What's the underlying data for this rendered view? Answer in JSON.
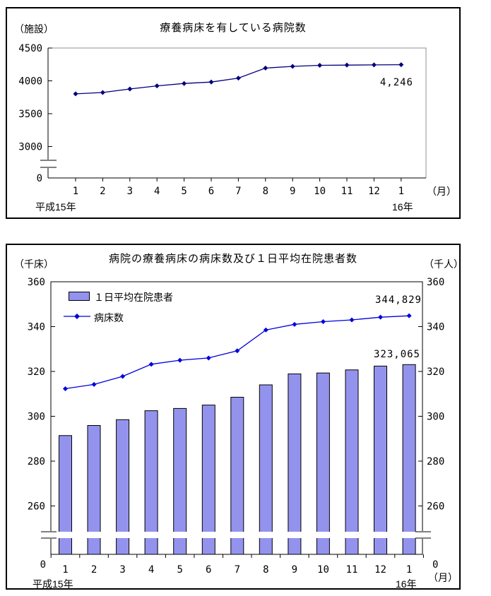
{
  "colors": {
    "bar_fill": "#9393ee",
    "bar_border": "#000000",
    "line_beds": "#0000dd",
    "line_hospitals": "#00007d",
    "plot_border_gray": "#909090",
    "axis": "#000000"
  },
  "chart_data": [
    {
      "type": "line",
      "title": "療養病床を有している病院数",
      "unit_left": "（施設）",
      "categories": [
        "1",
        "2",
        "3",
        "4",
        "5",
        "6",
        "7",
        "8",
        "9",
        "10",
        "11",
        "12",
        "1"
      ],
      "series": [
        {
          "name": "病院数",
          "values": [
            3802,
            3823,
            3876,
            3924,
            3960,
            3982,
            4042,
            4195,
            4220,
            4237,
            4240,
            4243,
            4246
          ]
        }
      ],
      "yticks": [
        4500,
        4000,
        3500,
        3000,
        0
      ],
      "ylim": [
        0,
        4500
      ],
      "axis_break_between": [
        0,
        3000
      ],
      "grid": false,
      "legend_position": "none",
      "annotation": "4,246",
      "x_note": "（月）",
      "year_start": "平成15年",
      "year_end": "16年"
    },
    {
      "type": "bar+line",
      "title": "病院の療養病床の病床数及び１日平均在院患者数",
      "unit_left": "（千床）",
      "unit_right": "（千人）",
      "categories": [
        "1",
        "2",
        "3",
        "4",
        "5",
        "6",
        "7",
        "8",
        "9",
        "10",
        "11",
        "12",
        "1"
      ],
      "series": [
        {
          "name": "１日平均在院患者",
          "kind": "bar",
          "values": [
            291.4,
            295.9,
            298.5,
            302.5,
            303.5,
            305.0,
            308.5,
            314.0,
            318.9,
            319.3,
            320.7,
            322.4,
            323.065
          ],
          "annotation": "323,065"
        },
        {
          "name": "病床数",
          "kind": "line",
          "values": [
            312.3,
            314.2,
            317.8,
            323.2,
            325.0,
            326.0,
            329.2,
            338.5,
            341.0,
            342.2,
            343.0,
            344.2,
            344.829
          ],
          "annotation": "344,829"
        }
      ],
      "yticks": [
        360,
        340,
        320,
        300,
        280,
        260
      ],
      "zero_label": "0",
      "ylim": [
        0,
        360
      ],
      "axis_break_between": [
        0,
        260
      ],
      "grid": false,
      "legend_position": "top-left",
      "x_note": "（月）",
      "year_start": "平成15年",
      "year_end": "16年"
    }
  ]
}
